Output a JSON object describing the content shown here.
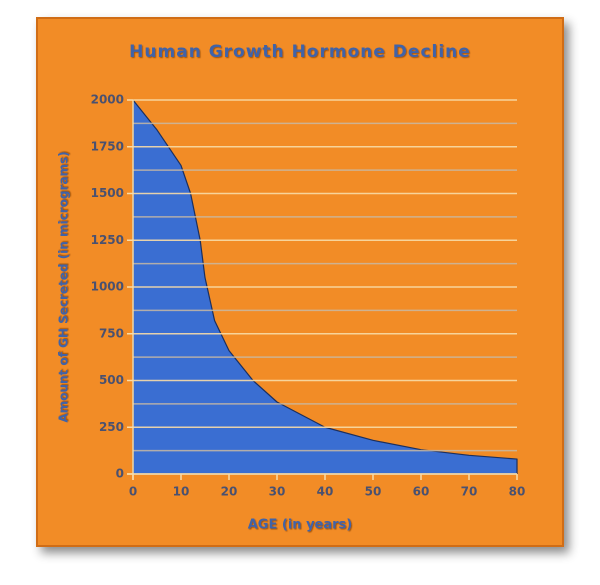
{
  "chart_data": {
    "type": "area",
    "title": "Human Growth Hormone Decline",
    "x_label": "AGE (in years)",
    "y_label": "Amount of GH Secreted (in micrograms)",
    "x": [
      0,
      5,
      10,
      12,
      14,
      15,
      17,
      20,
      25,
      30,
      40,
      50,
      60,
      70,
      80
    ],
    "values": [
      2000,
      1840,
      1650,
      1500,
      1250,
      1050,
      820,
      660,
      500,
      385,
      250,
      180,
      130,
      100,
      80
    ],
    "color": "#3a6ed2",
    "xlim": [
      0,
      80
    ],
    "xticks": [
      0,
      10,
      20,
      30,
      40,
      50,
      60,
      70,
      80
    ],
    "ylim": [
      0,
      2000
    ],
    "yticks": [
      0,
      250,
      500,
      750,
      1000,
      1250,
      1500,
      1750,
      2000
    ],
    "minor_yticks": [
      125,
      375,
      625,
      875,
      1125,
      1375,
      1625,
      1875
    ],
    "grid": true
  }
}
